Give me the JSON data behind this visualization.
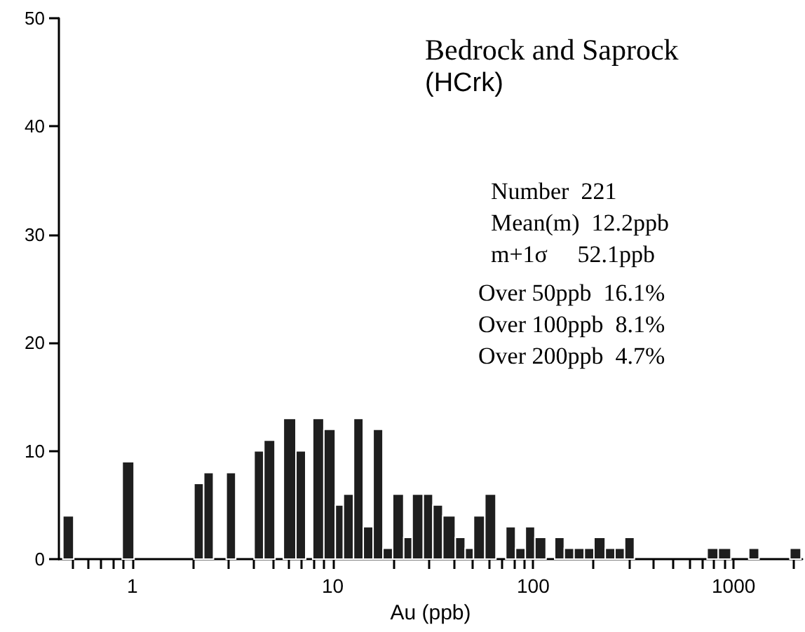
{
  "chart_data": {
    "type": "histogram",
    "title": "Bedrock and Saprock",
    "subtitle": "(HCrk)",
    "xlabel": "Au (ppb)",
    "annotations": [
      "Number  221",
      "Mean(m)  12.2ppb",
      "m+1σ     52.1ppb",
      "Over 50ppb  16.1%",
      "Over 100ppb  8.1%",
      "Over 200ppb  4.7%"
    ],
    "bins": [
      0.45,
      0.51,
      0.89,
      1.02,
      2.03,
      2.27,
      2.54,
      2.94,
      3.28,
      4.05,
      4.53,
      5.15,
      5.67,
      6.55,
      7.33,
      7.94,
      9.03,
      10.3,
      11.3,
      12.7,
      14.2,
      15.9,
      17.8,
      19.9,
      22.6,
      24.9,
      28.3,
      31.6,
      35.4,
      40.9,
      45.8,
      50.4,
      57.4,
      65.2,
      73,
      81.7,
      91.4,
      102,
      116,
      128,
      143,
      160,
      180,
      201,
      229,
      256,
      286,
      320,
      738,
      839,
      970,
      1190,
      1340,
      1910,
      2170
    ],
    "values": [
      4,
      0,
      9,
      0,
      7,
      8,
      0,
      8,
      0,
      10,
      11,
      0,
      13,
      10,
      0,
      13,
      12,
      5,
      6,
      13,
      3,
      12,
      1,
      6,
      2,
      6,
      6,
      5,
      4,
      2,
      1,
      4,
      6,
      0,
      3,
      1,
      3,
      2,
      0,
      2,
      1,
      1,
      1,
      2,
      1,
      1,
      2,
      0,
      1,
      1,
      0,
      1,
      0,
      1
    ],
    "color": "#1e1e1e",
    "log": "x",
    "xlim": [
      0.43,
      2200
    ],
    "xticks": [
      {
        "value": 0.5,
        "label": null
      },
      {
        "value": 0.6,
        "label": null
      },
      {
        "value": 0.7,
        "label": null
      },
      {
        "value": 0.8,
        "label": null
      },
      {
        "value": 0.9,
        "label": null
      },
      1,
      {
        "value": 2,
        "label": null
      },
      {
        "value": 3,
        "label": null
      },
      {
        "value": 4,
        "label": null
      },
      {
        "value": 5,
        "label": null
      },
      {
        "value": 6,
        "label": null
      },
      {
        "value": 7,
        "label": null
      },
      {
        "value": 8,
        "label": null
      },
      {
        "value": 9,
        "label": null
      },
      10,
      {
        "value": 20,
        "label": null
      },
      {
        "value": 30,
        "label": null
      },
      {
        "value": 40,
        "label": null
      },
      {
        "value": 50,
        "label": null
      },
      {
        "value": 60,
        "label": null
      },
      {
        "value": 70,
        "label": null
      },
      {
        "value": 80,
        "label": null
      },
      {
        "value": 90,
        "label": null
      },
      100,
      {
        "value": 200,
        "label": null
      },
      {
        "value": 300,
        "label": null
      },
      {
        "value": 400,
        "label": null
      },
      {
        "value": 500,
        "label": null
      },
      {
        "value": 600,
        "label": null
      },
      {
        "value": 700,
        "label": null
      },
      {
        "value": 800,
        "label": null
      },
      {
        "value": 900,
        "label": null
      },
      1000,
      {
        "value": 2000,
        "label": null
      }
    ],
    "ylim": [
      0,
      50
    ],
    "yticks": [
      0,
      10,
      20,
      30,
      40,
      50
    ],
    "grid": false
  }
}
